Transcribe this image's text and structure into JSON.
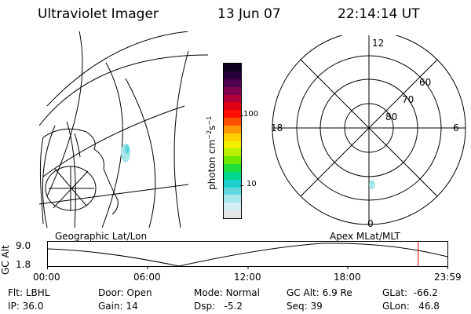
{
  "header": {
    "instrument": "Ultraviolet Imager",
    "date": "13 Jun 07",
    "time": "22:14:14 UT"
  },
  "colorbar": {
    "label": "photon cm",
    "label_sup1": "−2",
    "label_mid": "s",
    "label_sup2": "−1",
    "ticks": [
      {
        "label": "100",
        "value": 100
      },
      {
        "label": "10",
        "value": 10
      }
    ],
    "colors": [
      "#e6e6e6",
      "#d2eef2",
      "#a6e6ea",
      "#5fd8e0",
      "#20d0cc",
      "#00d890",
      "#20e040",
      "#70e800",
      "#b8f000",
      "#f0f000",
      "#ffd000",
      "#ff9800",
      "#ff5000",
      "#ff1000",
      "#e00018",
      "#b00038",
      "#800050",
      "#500050",
      "#280038",
      "#100020"
    ]
  },
  "polar": {
    "mlt_labels": {
      "top": "12",
      "left": "18",
      "right": "6",
      "bottom": "0"
    },
    "lat_labels": [
      "60",
      "70",
      "80"
    ]
  },
  "timeline": {
    "ylabel": "GC Alt",
    "ymax": "9.0",
    "ymin": "1.8",
    "left_title": "Geographic Lat/Lon",
    "right_title": "Apex MLat/MLT",
    "xticks": [
      "00:00",
      "06:00",
      "12:00",
      "18:00",
      "23:59"
    ],
    "current_time_fraction": 0.9268
  },
  "info": {
    "flt_label": "Flt:",
    "flt_value": "LBHL",
    "ip_label": "IP:",
    "ip_value": "36.0",
    "door_label": "Door:",
    "door_value": "Open",
    "gain_label": "Gain:",
    "gain_value": "14",
    "mode_label": "Mode:",
    "mode_value": "Normal",
    "dsp_label": "Dsp:",
    "dsp_value": "-5.2",
    "gcalt_label": "GC Alt:",
    "gcalt_value": "6.9 Re",
    "seq_label": "Seq:",
    "seq_value": "39",
    "glat_label": "GLat:",
    "glat_value": "-66.2",
    "glon_label": "GLon:",
    "glon_value": "46.8"
  }
}
